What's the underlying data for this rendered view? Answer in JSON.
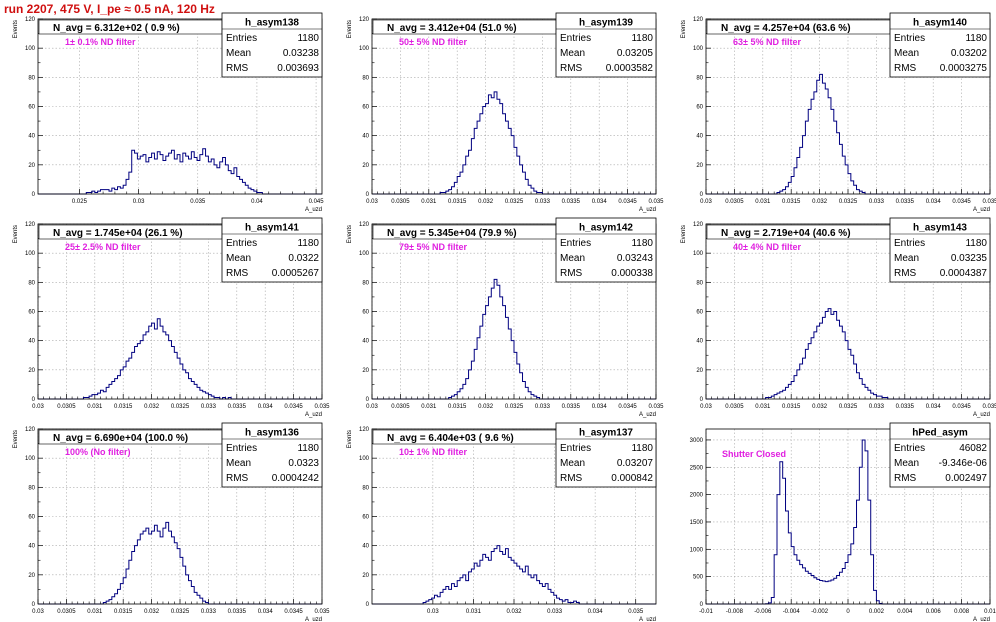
{
  "page_title": "run 2207,   475 V, I_pe ≈ 0.5 nA, 120 Hz",
  "colors": {
    "title": "#d01010",
    "histogram_line": "#000080",
    "annotation": "#e020e0",
    "grid": "#aaaaaa",
    "frame": "#000000"
  },
  "chart_data": [
    {
      "type": "histogram",
      "name": "h_asym138",
      "navg_label": "N_avg = 6.312e+02 ( 0.9 %)",
      "filter_label": "1± 0.1% ND filter",
      "stats": {
        "entries_label": "Entries",
        "entries": "1180",
        "mean_label": "Mean",
        "mean": "0.03238",
        "rms_label": "RMS",
        "rms": "0.003693"
      },
      "ylabel": "Events",
      "xlabel": "A_uzd",
      "grid": true,
      "legend": "top-right",
      "xlim": [
        0.0215,
        0.0455
      ],
      "ylim": [
        0,
        120
      ],
      "xticks": [
        "0.025",
        "0.03",
        "0.035",
        "0.04",
        "0.045"
      ],
      "yticks": [
        "0",
        "20",
        "40",
        "60",
        "80",
        "100",
        "120"
      ],
      "values": [
        0,
        0,
        0,
        0,
        0,
        0,
        0,
        0,
        0,
        0,
        0,
        0,
        0,
        0,
        0,
        0,
        0,
        1,
        1,
        2,
        1,
        2,
        3,
        3,
        3,
        2,
        4,
        3,
        5,
        4,
        6,
        10,
        15,
        30,
        28,
        24,
        26,
        27,
        22,
        25,
        28,
        24,
        29,
        27,
        23,
        26,
        28,
        30,
        24,
        27,
        22,
        28,
        26,
        24,
        29,
        25,
        23,
        27,
        31,
        26,
        22,
        24,
        20,
        18,
        22,
        25,
        20,
        16,
        14,
        18,
        12,
        10,
        8,
        6,
        4,
        3,
        2,
        1,
        1,
        0,
        0,
        0,
        0,
        0,
        0,
        0,
        0,
        0,
        0,
        0,
        0,
        0,
        0,
        0,
        0,
        0,
        0,
        0,
        0,
        0
      ]
    },
    {
      "type": "histogram",
      "name": "h_asym139",
      "navg_label": "N_avg = 3.412e+04 (51.0 %)",
      "filter_label": "50± 5% ND filter",
      "stats": {
        "entries_label": "Entries",
        "entries": "1180",
        "mean_label": "Mean",
        "mean": "0.03205",
        "rms_label": "RMS",
        "rms": "0.0003582"
      },
      "ylabel": "Events",
      "xlabel": "A_uzd",
      "grid": true,
      "legend": "top-right",
      "xlim": [
        0.03,
        0.035
      ],
      "ylim": [
        0,
        120
      ],
      "xticks": [
        "0.03",
        "0.0305",
        "0.031",
        "0.0315",
        "0.032",
        "0.0325",
        "0.033",
        "0.0335",
        "0.034",
        "0.0345",
        "0.035"
      ],
      "yticks": [
        "0",
        "20",
        "40",
        "60",
        "80",
        "100",
        "120"
      ],
      "values": [
        0,
        0,
        0,
        0,
        0,
        0,
        0,
        0,
        0,
        0,
        0,
        0,
        0,
        0,
        0,
        0,
        0,
        0,
        0,
        0,
        0,
        0,
        0,
        0,
        1,
        1,
        2,
        3,
        5,
        8,
        12,
        15,
        20,
        26,
        30,
        38,
        45,
        50,
        55,
        60,
        62,
        68,
        66,
        70,
        65,
        62,
        55,
        50,
        45,
        40,
        32,
        26,
        20,
        15,
        10,
        6,
        4,
        2,
        1,
        1,
        0,
        0,
        0,
        0,
        0,
        0,
        0,
        0,
        0,
        0,
        0,
        0,
        0,
        0,
        0,
        0,
        0,
        0,
        0,
        0,
        0,
        0,
        0,
        0,
        0,
        0,
        0,
        0,
        0,
        0,
        0,
        0,
        0,
        0,
        0,
        0,
        0,
        0,
        0,
        0
      ]
    },
    {
      "type": "histogram",
      "name": "h_asym140",
      "navg_label": "N_avg = 4.257e+04 (63.6 %)",
      "filter_label": "63± 5% ND filter",
      "stats": {
        "entries_label": "Entries",
        "entries": "1180",
        "mean_label": "Mean",
        "mean": "0.03202",
        "rms_label": "RMS",
        "rms": "0.0003275"
      },
      "ylabel": "Events",
      "xlabel": "A_uzd",
      "grid": true,
      "legend": "top-right",
      "xlim": [
        0.03,
        0.035
      ],
      "ylim": [
        0,
        120
      ],
      "xticks": [
        "0.03",
        "0.0305",
        "0.031",
        "0.0315",
        "0.032",
        "0.0325",
        "0.033",
        "0.0335",
        "0.034",
        "0.0345",
        "0.035"
      ],
      "yticks": [
        "0",
        "20",
        "40",
        "60",
        "80",
        "100",
        "120"
      ],
      "values": [
        0,
        0,
        0,
        0,
        0,
        0,
        0,
        0,
        0,
        0,
        0,
        0,
        0,
        0,
        0,
        0,
        0,
        0,
        0,
        0,
        0,
        0,
        0,
        0,
        0,
        1,
        2,
        3,
        5,
        8,
        12,
        18,
        25,
        32,
        40,
        50,
        58,
        65,
        70,
        78,
        82,
        76,
        72,
        66,
        58,
        50,
        42,
        34,
        26,
        20,
        14,
        9,
        6,
        3,
        2,
        1,
        0,
        0,
        0,
        0,
        0,
        0,
        0,
        0,
        0,
        0,
        0,
        0,
        0,
        0,
        0,
        0,
        0,
        0,
        0,
        0,
        0,
        0,
        0,
        0,
        0,
        0,
        0,
        0,
        0,
        0,
        0,
        0,
        0,
        0,
        0,
        0,
        0,
        0,
        0,
        0,
        0,
        0,
        0,
        0
      ]
    },
    {
      "type": "histogram",
      "name": "h_asym141",
      "navg_label": "N_avg = 1.745e+04 (26.1 %)",
      "filter_label": "25± 2.5% ND filter",
      "stats": {
        "entries_label": "Entries",
        "entries": "1180",
        "mean_label": "Mean",
        "mean": "0.0322",
        "rms_label": "RMS",
        "rms": "0.0005267"
      },
      "ylabel": "Events",
      "xlabel": "A_uzd",
      "grid": true,
      "legend": "top-right",
      "xlim": [
        0.03,
        0.035
      ],
      "ylim": [
        0,
        120
      ],
      "xticks": [
        "0.03",
        "0.0305",
        "0.031",
        "0.0315",
        "0.032",
        "0.0325",
        "0.033",
        "0.0335",
        "0.034",
        "0.0345",
        "0.035"
      ],
      "yticks": [
        "0",
        "20",
        "40",
        "60",
        "80",
        "100",
        "120"
      ],
      "values": [
        0,
        0,
        0,
        0,
        0,
        0,
        0,
        0,
        0,
        0,
        0,
        0,
        0,
        0,
        0,
        0,
        1,
        1,
        2,
        3,
        3,
        4,
        6,
        5,
        8,
        10,
        12,
        14,
        16,
        20,
        22,
        26,
        28,
        32,
        36,
        38,
        40,
        44,
        46,
        50,
        52,
        48,
        55,
        50,
        46,
        44,
        40,
        36,
        32,
        28,
        24,
        20,
        18,
        14,
        12,
        10,
        8,
        6,
        5,
        4,
        3,
        2,
        1,
        1,
        0,
        1,
        0,
        1,
        0,
        0,
        0,
        0,
        0,
        0,
        0,
        0,
        0,
        0,
        0,
        0,
        0,
        0,
        0,
        0,
        0,
        0,
        0,
        0,
        0,
        0,
        0,
        0,
        0,
        0,
        0,
        0,
        0,
        0,
        0,
        0
      ]
    },
    {
      "type": "histogram",
      "name": "h_asym142",
      "navg_label": "N_avg = 5.345e+04 (79.9 %)",
      "filter_label": "79± 5% ND filter",
      "stats": {
        "entries_label": "Entries",
        "entries": "1180",
        "mean_label": "Mean",
        "mean": "0.03243",
        "rms_label": "RMS",
        "rms": "0.000338"
      },
      "ylabel": "Events",
      "xlabel": "A_uzd",
      "grid": true,
      "legend": "top-right",
      "xlim": [
        0.03,
        0.035
      ],
      "ylim": [
        0,
        120
      ],
      "xticks": [
        "0.03",
        "0.0305",
        "0.031",
        "0.0315",
        "0.032",
        "0.0325",
        "0.033",
        "0.0335",
        "0.034",
        "0.0345",
        "0.035"
      ],
      "yticks": [
        "0",
        "20",
        "40",
        "60",
        "80",
        "100",
        "120"
      ],
      "values": [
        0,
        0,
        0,
        0,
        0,
        0,
        0,
        0,
        0,
        0,
        0,
        0,
        0,
        0,
        0,
        0,
        0,
        0,
        0,
        0,
        0,
        0,
        0,
        0,
        0,
        0,
        0,
        1,
        2,
        3,
        5,
        7,
        10,
        14,
        20,
        26,
        34,
        42,
        50,
        58,
        64,
        70,
        76,
        82,
        78,
        70,
        64,
        56,
        48,
        40,
        32,
        24,
        18,
        12,
        8,
        5,
        3,
        2,
        1,
        0,
        0,
        0,
        0,
        0,
        0,
        0,
        0,
        0,
        0,
        0,
        0,
        0,
        0,
        0,
        0,
        0,
        0,
        0,
        0,
        0,
        0,
        0,
        0,
        0,
        0,
        0,
        0,
        0,
        0,
        0,
        0,
        0,
        0,
        0,
        0,
        0,
        0,
        0,
        0,
        0
      ]
    },
    {
      "type": "histogram",
      "name": "h_asym143",
      "navg_label": "N_avg = 2.719e+04 (40.6 %)",
      "filter_label": "40± 4% ND filter",
      "stats": {
        "entries_label": "Entries",
        "entries": "1180",
        "mean_label": "Mean",
        "mean": "0.03235",
        "rms_label": "RMS",
        "rms": "0.0004387"
      },
      "ylabel": "Events",
      "xlabel": "A_uzd",
      "grid": true,
      "legend": "top-right",
      "xlim": [
        0.03,
        0.035
      ],
      "ylim": [
        0,
        120
      ],
      "xticks": [
        "0.03",
        "0.0305",
        "0.031",
        "0.0315",
        "0.032",
        "0.0325",
        "0.033",
        "0.0335",
        "0.034",
        "0.0345",
        "0.035"
      ],
      "yticks": [
        "0",
        "20",
        "40",
        "60",
        "80",
        "100",
        "120"
      ],
      "values": [
        0,
        0,
        0,
        0,
        0,
        0,
        0,
        0,
        0,
        0,
        0,
        0,
        0,
        0,
        0,
        0,
        0,
        0,
        0,
        0,
        0,
        1,
        1,
        2,
        3,
        4,
        5,
        6,
        8,
        10,
        12,
        16,
        20,
        24,
        28,
        34,
        38,
        42,
        46,
        50,
        52,
        56,
        60,
        62,
        58,
        60,
        54,
        50,
        46,
        40,
        34,
        30,
        24,
        18,
        14,
        10,
        8,
        6,
        4,
        3,
        2,
        2,
        1,
        1,
        0,
        0,
        0,
        0,
        0,
        0,
        0,
        0,
        0,
        0,
        0,
        0,
        0,
        0,
        0,
        0,
        0,
        0,
        0,
        0,
        0,
        0,
        0,
        0,
        0,
        0,
        0,
        0,
        0,
        0,
        0,
        0,
        0,
        0,
        0,
        0
      ]
    },
    {
      "type": "histogram",
      "name": "h_asym136",
      "navg_label": "N_avg = 6.690e+04 (100.0 %)",
      "filter_label": "100% (No filter)",
      "stats": {
        "entries_label": "Entries",
        "entries": "1180",
        "mean_label": "Mean",
        "mean": "0.0323",
        "rms_label": "RMS",
        "rms": "0.0004242"
      },
      "ylabel": "Events",
      "xlabel": "A_uzd",
      "grid": true,
      "legend": "top-right",
      "xlim": [
        0.03,
        0.035
      ],
      "ylim": [
        0,
        120
      ],
      "xticks": [
        "0.03",
        "0.0305",
        "0.031",
        "0.0315",
        "0.032",
        "0.0325",
        "0.033",
        "0.0335",
        "0.034",
        "0.0345",
        "0.035"
      ],
      "yticks": [
        "0",
        "20",
        "40",
        "60",
        "80",
        "100",
        "120"
      ],
      "values": [
        0,
        0,
        0,
        0,
        0,
        0,
        0,
        0,
        0,
        0,
        0,
        0,
        0,
        0,
        0,
        0,
        0,
        0,
        0,
        0,
        0,
        0,
        0,
        1,
        2,
        3,
        5,
        7,
        10,
        14,
        18,
        24,
        30,
        36,
        40,
        44,
        48,
        50,
        52,
        48,
        50,
        54,
        50,
        46,
        52,
        56,
        50,
        46,
        42,
        38,
        32,
        26,
        20,
        16,
        12,
        8,
        6,
        4,
        2,
        1,
        0,
        0,
        0,
        0,
        0,
        0,
        0,
        0,
        0,
        0,
        0,
        0,
        0,
        0,
        0,
        0,
        0,
        0,
        0,
        0,
        0,
        0,
        0,
        0,
        0,
        0,
        0,
        0,
        0,
        0,
        0,
        0,
        0,
        0,
        0,
        0,
        0,
        0,
        0,
        0
      ]
    },
    {
      "type": "histogram",
      "name": "h_asym137",
      "navg_label": "N_avg = 6.404e+03 ( 9.6 %)",
      "filter_label": "10± 1% ND filter",
      "stats": {
        "entries_label": "Entries",
        "entries": "1180",
        "mean_label": "Mean",
        "mean": "0.03207",
        "rms_label": "RMS",
        "rms": "0.000842"
      },
      "ylabel": "Events",
      "xlabel": "A_uzd",
      "grid": true,
      "legend": "top-right",
      "xlim": [
        0.0285,
        0.0355
      ],
      "ylim": [
        0,
        120
      ],
      "xticks": [
        "0.03",
        "0.031",
        "0.032",
        "0.033",
        "0.034",
        "0.035"
      ],
      "yticks": [
        "0",
        "20",
        "40",
        "60",
        "80",
        "100",
        "120"
      ],
      "values": [
        0,
        0,
        0,
        0,
        0,
        0,
        0,
        0,
        0,
        0,
        0,
        0,
        0,
        0,
        0,
        0,
        0,
        0,
        1,
        2,
        3,
        4,
        6,
        5,
        8,
        10,
        12,
        10,
        14,
        12,
        16,
        18,
        20,
        16,
        22,
        24,
        28,
        26,
        30,
        34,
        32,
        30,
        36,
        38,
        40,
        36,
        34,
        38,
        32,
        30,
        28,
        26,
        24,
        22,
        26,
        20,
        18,
        20,
        16,
        14,
        12,
        14,
        10,
        8,
        6,
        4,
        3,
        2,
        3,
        1,
        1,
        2,
        1,
        0,
        0,
        0,
        0,
        0,
        0,
        0,
        0,
        0,
        0,
        0,
        0,
        0,
        0,
        0,
        0,
        0,
        0,
        0,
        0,
        0,
        0,
        0,
        0,
        0,
        0,
        0
      ]
    },
    {
      "type": "histogram",
      "name": "hPed_asym",
      "navg_label": "",
      "filter_label": "Shutter Closed",
      "stats": {
        "entries_label": "Entries",
        "entries": "46082",
        "mean_label": "Mean",
        "mean": "-9.346e-06",
        "rms_label": "RMS",
        "rms": "0.002497"
      },
      "ylabel": "",
      "xlabel": "A_uzd",
      "grid": true,
      "legend": "top-right",
      "xlim": [
        -0.01,
        0.01
      ],
      "ylim": [
        0,
        3200
      ],
      "xticks": [
        "-0.01",
        "-0.008",
        "-0.006",
        "-0.004",
        "-0.002",
        "0",
        "0.002",
        "0.004",
        "0.006",
        "0.008",
        "0.01"
      ],
      "yticks": [
        "0",
        "500",
        "1000",
        "1500",
        "2000",
        "2500",
        "3000"
      ],
      "values": [
        0,
        0,
        0,
        0,
        0,
        0,
        0,
        0,
        0,
        0,
        0,
        0,
        0,
        0,
        0,
        0,
        0,
        0,
        0,
        0,
        0,
        5,
        20,
        120,
        900,
        2000,
        2600,
        2300,
        1700,
        1300,
        1050,
        900,
        800,
        720,
        660,
        600,
        560,
        520,
        480,
        450,
        430,
        420,
        410,
        420,
        440,
        470,
        520,
        580,
        650,
        760,
        900,
        1100,
        1400,
        1900,
        2500,
        3000,
        2800,
        1900,
        900,
        250,
        60,
        10,
        0,
        0,
        0,
        0,
        0,
        0,
        0,
        0,
        0,
        0,
        0,
        0,
        0,
        0,
        0,
        0,
        0,
        0,
        0,
        0,
        0,
        0,
        0,
        0,
        0,
        0,
        0,
        0,
        0,
        0,
        0,
        0,
        0,
        0,
        0,
        0,
        0,
        0
      ]
    }
  ]
}
